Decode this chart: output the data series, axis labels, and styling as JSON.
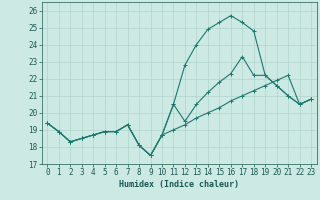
{
  "xlabel": "Humidex (Indice chaleur)",
  "ylabel": "",
  "xlim": [
    -0.5,
    23.5
  ],
  "ylim": [
    17,
    26.5
  ],
  "yticks": [
    17,
    18,
    19,
    20,
    21,
    22,
    23,
    24,
    25,
    26
  ],
  "xticks": [
    0,
    1,
    2,
    3,
    4,
    5,
    6,
    7,
    8,
    9,
    10,
    11,
    12,
    13,
    14,
    15,
    16,
    17,
    18,
    19,
    20,
    21,
    22,
    23
  ],
  "background_color": "#cce9e4",
  "grid_color": "#b0d4cd",
  "line_color": "#1a7a6e",
  "curves": [
    {
      "x": [
        0,
        1,
        2,
        3,
        4,
        5,
        6,
        7,
        8,
        9,
        10,
        11,
        12,
        13,
        14,
        15,
        16,
        17,
        18,
        19,
        20,
        21,
        22,
        23
      ],
      "y": [
        19.4,
        18.9,
        18.3,
        18.5,
        18.7,
        18.9,
        18.9,
        19.3,
        18.1,
        17.5,
        18.7,
        20.5,
        22.8,
        24.0,
        24.9,
        25.3,
        25.7,
        25.3,
        24.8,
        22.2,
        21.6,
        21.0,
        20.5,
        20.8
      ]
    },
    {
      "x": [
        0,
        1,
        2,
        3,
        4,
        5,
        6,
        7,
        8,
        9,
        10,
        11,
        12,
        13,
        14,
        15,
        16,
        17,
        18,
        19,
        20,
        21,
        22,
        23
      ],
      "y": [
        19.4,
        18.9,
        18.3,
        18.5,
        18.7,
        18.9,
        18.9,
        19.3,
        18.1,
        17.5,
        18.7,
        20.5,
        19.5,
        20.5,
        21.2,
        21.8,
        22.3,
        23.3,
        22.2,
        22.2,
        21.6,
        21.0,
        20.5,
        20.8
      ]
    },
    {
      "x": [
        0,
        1,
        2,
        3,
        4,
        5,
        6,
        7,
        8,
        9,
        10,
        11,
        12,
        13,
        14,
        15,
        16,
        17,
        18,
        19,
        20,
        21,
        22,
        23
      ],
      "y": [
        19.4,
        18.9,
        18.3,
        18.5,
        18.7,
        18.9,
        18.9,
        19.3,
        18.1,
        17.5,
        18.7,
        19.0,
        19.3,
        19.7,
        20.0,
        20.3,
        20.7,
        21.0,
        21.3,
        21.6,
        21.9,
        22.2,
        20.5,
        20.8
      ]
    }
  ]
}
